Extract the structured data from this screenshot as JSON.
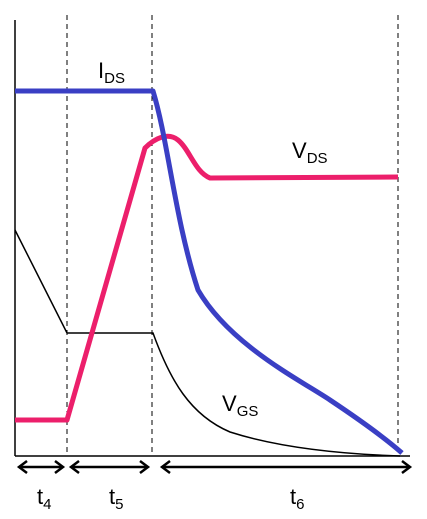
{
  "chart_data": {
    "type": "line",
    "title": "",
    "xlabel": "",
    "ylabel": "",
    "grid": false,
    "axis_ticks": false,
    "series": [
      {
        "name": "I_DS",
        "color": "#3a3fc4"
      },
      {
        "name": "V_DS",
        "color": "#ec1f6b"
      },
      {
        "name": "V_GS",
        "color": "#000000"
      }
    ],
    "intervals": [
      {
        "label": "t",
        "subscript": "4"
      },
      {
        "label": "t",
        "subscript": "5"
      },
      {
        "label": "t",
        "subscript": "6"
      }
    ]
  },
  "labels": {
    "ids": {
      "main": "I",
      "sub": "DS"
    },
    "vds": {
      "main": "V",
      "sub": "DS"
    },
    "vgs": {
      "main": "V",
      "sub": "GS"
    }
  }
}
